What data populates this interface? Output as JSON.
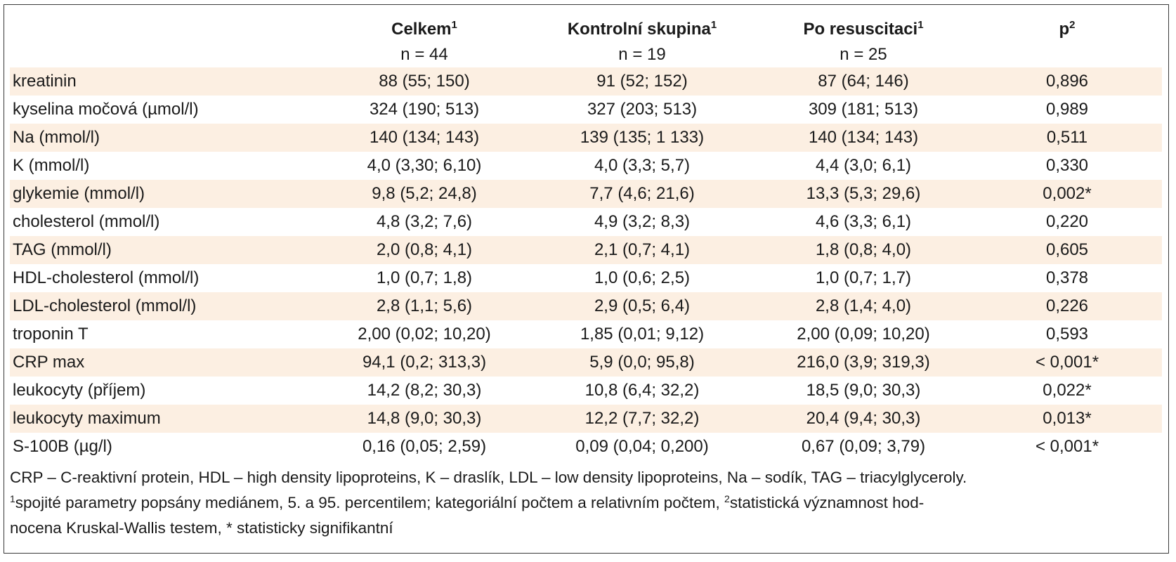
{
  "table": {
    "headers": [
      {
        "label": "",
        "sup": ""
      },
      {
        "label": "Celkem",
        "sup": "1"
      },
      {
        "label": "Kontrolní skupina",
        "sup": "1"
      },
      {
        "label": "Po resuscitaci",
        "sup": "1"
      },
      {
        "label": "p",
        "sup": "2"
      }
    ],
    "counts": [
      "",
      "n = 44",
      "n = 19",
      "n = 25",
      ""
    ],
    "rows": [
      {
        "label": "kreatinin",
        "total": "88 (55; 150)",
        "control": "91 (52; 152)",
        "resus": "87 (64; 146)",
        "p": "0,896"
      },
      {
        "label": "kyselina močová (µmol/l)",
        "total": "324 (190; 513)",
        "control": "327 (203; 513)",
        "resus": "309 (181; 513)",
        "p": "0,989"
      },
      {
        "label": "Na (mmol/l)",
        "total": "140 (134; 143)",
        "control": "139 (135; 1 133)",
        "resus": "140 (134; 143)",
        "p": "0,511"
      },
      {
        "label": "K (mmol/l)",
        "total": "4,0 (3,30; 6,10)",
        "control": "4,0 (3,3; 5,7)",
        "resus": "4,4 (3,0; 6,1)",
        "p": "0,330"
      },
      {
        "label": "glykemie (mmol/l)",
        "total": "9,8 (5,2; 24,8)",
        "control": "7,7 (4,6; 21,6)",
        "resus": "13,3 (5,3; 29,6)",
        "p": "0,002*"
      },
      {
        "label": "cholesterol (mmol/l)",
        "total": "4,8 (3,2; 7,6)",
        "control": "4,9 (3,2; 8,3)",
        "resus": "4,6 (3,3; 6,1)",
        "p": "0,220"
      },
      {
        "label": "TAG (mmol/l)",
        "total": "2,0 (0,8; 4,1)",
        "control": "2,1 (0,7; 4,1)",
        "resus": "1,8 (0,8; 4,0)",
        "p": "0,605"
      },
      {
        "label": "HDL-cholesterol (mmol/l)",
        "total": "1,0 (0,7; 1,8)",
        "control": "1,0 (0,6; 2,5)",
        "resus": "1,0 (0,7; 1,7)",
        "p": "0,378"
      },
      {
        "label": "LDL-cholesterol (mmol/l)",
        "total": "2,8 (1,1; 5,6)",
        "control": "2,9 (0,5; 6,4)",
        "resus": "2,8 (1,4; 4,0)",
        "p": "0,226"
      },
      {
        "label": "troponin T",
        "total": "2,00 (0,02; 10,20)",
        "control": "1,85 (0,01; 9,12)",
        "resus": "2,00 (0,09; 10,20)",
        "p": "0,593"
      },
      {
        "label": "CRP max",
        "total": "94,1 (0,2; 313,3)",
        "control": "5,9 (0,0; 95,8)",
        "resus": "216,0 (3,9; 319,3)",
        "p": "< 0,001*"
      },
      {
        "label": "leukocyty (příjem)",
        "total": "14,2 (8,2; 30,3)",
        "control": "10,8 (6,4; 32,2)",
        "resus": "18,5 (9,0; 30,3)",
        "p": "0,022*"
      },
      {
        "label": "leukocyty maximum",
        "total": "14,8 (9,0; 30,3)",
        "control": "12,2 (7,7; 32,2)",
        "resus": "20,4 (9,4; 30,3)",
        "p": "0,013*"
      },
      {
        "label": "S-100B (µg/l)",
        "total": "0,16 (0,05; 2,59)",
        "control": "0,09 (0,04; 0,200)",
        "resus": "0,67 (0,09; 3,79)",
        "p": "< 0,001*"
      }
    ]
  },
  "footnotes": {
    "abbrev": "CRP – C-reaktivní protein, HDL – high density lipoproteins, K – draslík, LDL – low density lipoproteins, Na – sodík, TAG – triacylglyceroly.",
    "note1_sup": "1",
    "note1": "spojité parametry popsány mediánem, 5. a 95. percentilem; kategoriální počtem a relativním počtem, ",
    "note2_sup": "2",
    "note2": "statistická významnost hod-",
    "note2_cont": "nocena Kruskal-Wallis testem, ",
    "note3": "* statisticky signifikantní"
  },
  "colors": {
    "shade": "#fcefe2",
    "border": "#3a3a3a"
  }
}
